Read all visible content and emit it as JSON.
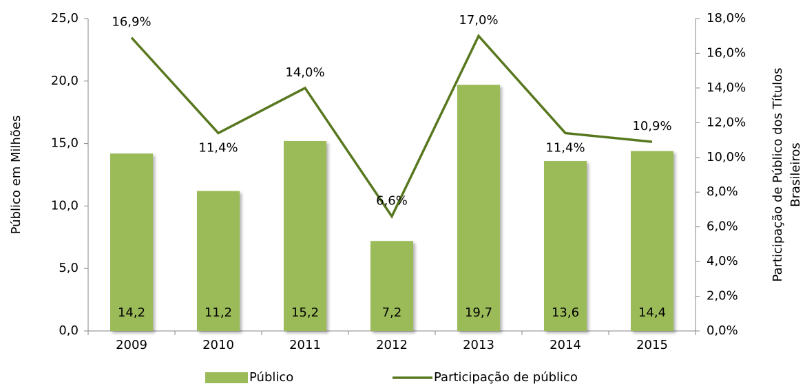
{
  "chart_data": {
    "type": "bar_line",
    "categories": [
      "2009",
      "2010",
      "2011",
      "2012",
      "2013",
      "2014",
      "2015"
    ],
    "y_label": "Público em Milhões",
    "y2_label": [
      "Participação de Público dos Títulos",
      "Brasileiros"
    ],
    "series": [
      {
        "name": "Público",
        "type": "bar",
        "color": "#9bbb59",
        "values": [
          14.2,
          11.2,
          15.2,
          7.2,
          19.7,
          13.6,
          14.4
        ],
        "value_labels": [
          "14,2",
          "11,2",
          "15,2",
          "7,2",
          "19,7",
          "13,6",
          "14,4"
        ]
      },
      {
        "name": "Participação de público",
        "type": "line",
        "axis": "y2",
        "color": "#58781f",
        "values": [
          16.9,
          11.4,
          14.0,
          6.6,
          17.0,
          11.4,
          10.9
        ],
        "value_labels": [
          "16,9%",
          "11,4%",
          "14,0%",
          "6,6%",
          "17,0%",
          "11,4%",
          "10,9%"
        ]
      }
    ],
    "ylim": [
      0,
      25
    ],
    "yticks": [
      {
        "value": 0,
        "label": "0,0"
      },
      {
        "value": 5,
        "label": "5,0"
      },
      {
        "value": 10,
        "label": "10,0"
      },
      {
        "value": 15,
        "label": "15,0"
      },
      {
        "value": 20,
        "label": "20,0"
      },
      {
        "value": 25,
        "label": "25,0"
      }
    ],
    "y2lim": [
      0,
      18
    ],
    "y2ticks": [
      {
        "value": 0,
        "label": "0,0%"
      },
      {
        "value": 2,
        "label": "2,0%"
      },
      {
        "value": 4,
        "label": "4,0%"
      },
      {
        "value": 6,
        "label": "6,0%"
      },
      {
        "value": 8,
        "label": "8,0%"
      },
      {
        "value": 10,
        "label": "10,0%"
      },
      {
        "value": 12,
        "label": "12,0%"
      },
      {
        "value": 14,
        "label": "14,0%"
      },
      {
        "value": 16,
        "label": "16,0%"
      },
      {
        "value": 18,
        "label": "18,0%"
      }
    ],
    "legend": "bottom"
  }
}
